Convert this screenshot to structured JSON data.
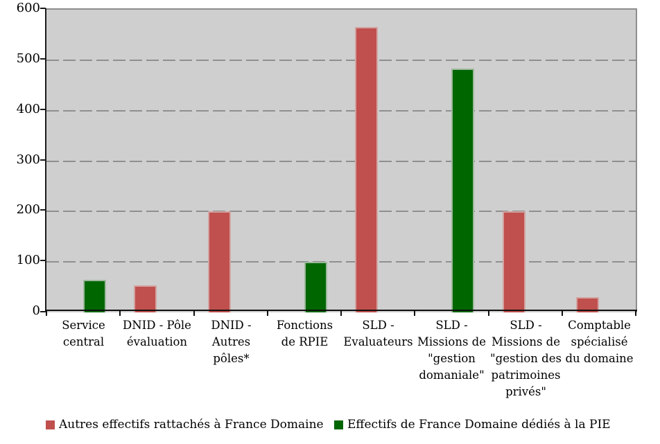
{
  "chart_data": {
    "type": "bar",
    "title": "",
    "xlabel": "",
    "ylabel": "",
    "ylim": [
      0,
      600
    ],
    "yticks": [
      0,
      100,
      200,
      300,
      400,
      500,
      600
    ],
    "grid": "horizontal-dashed",
    "legend_position": "bottom",
    "plot_bg_color": "#cfcfcf",
    "gridline_color": "#8f8f8f",
    "categories": [
      "Service\ncentral",
      "DNID - Pôle\névaluation",
      "DNID -\nAutres\npôles*",
      "Fonctions\nde RPIE",
      "SLD -\nEvaluateurs",
      "SLD -\nMissions de\n\"gestion\ndomaniale\"",
      "SLD -\nMissions de\n\"gestion des\npatrimoines\nprivés\"",
      "Comptable\nspécialisé\ndu domaine"
    ],
    "series": [
      {
        "name": "Autres effectifs rattachés à France Domaine",
        "color": "#c0504d",
        "border_color": "#d2a3a1",
        "values": [
          0,
          54,
          200,
          0,
          565,
          0,
          200,
          30
        ]
      },
      {
        "name": "Effectifs de France Domaine dédiés à la PIE",
        "color": "#006600",
        "border_color": "#9db89d",
        "values": [
          65,
          0,
          0,
          100,
          0,
          483,
          0,
          0
        ]
      }
    ]
  }
}
